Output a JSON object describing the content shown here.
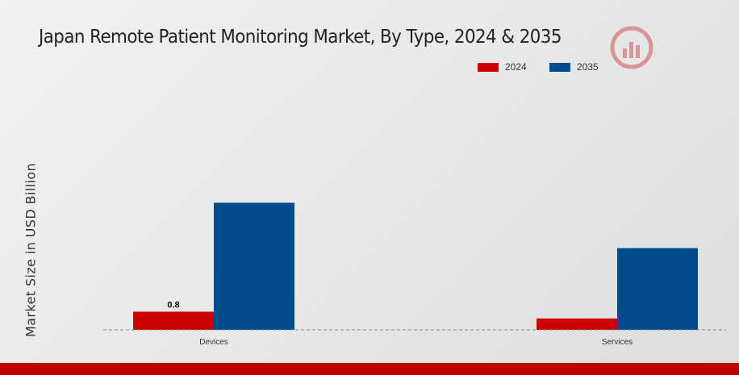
{
  "page": {
    "title": "Japan Remote Patient Monitoring Market, By Type, 2024 & 2035"
  },
  "colors": {
    "series_2024": "#cc0000",
    "series_2035": "#004c8c",
    "accent_bar": "#c00000"
  },
  "chart_data": {
    "type": "bar",
    "title": "Japan Remote Patient Monitoring Market, By Type, 2024 & 2035",
    "xlabel": "",
    "ylabel": "Market Size in USD Billion",
    "categories": [
      "Devices",
      "Services"
    ],
    "series": [
      {
        "name": "2024",
        "values": [
          0.8,
          0.5
        ],
        "color": "#cc0000"
      },
      {
        "name": "2035",
        "values": [
          5.6,
          3.6
        ],
        "color": "#004c8c"
      }
    ],
    "data_labels": [
      {
        "series": "2024",
        "category": "Devices",
        "text": "0.8"
      }
    ],
    "ylim": [
      0,
      7
    ],
    "grid": false,
    "legend_position": "top-right"
  }
}
